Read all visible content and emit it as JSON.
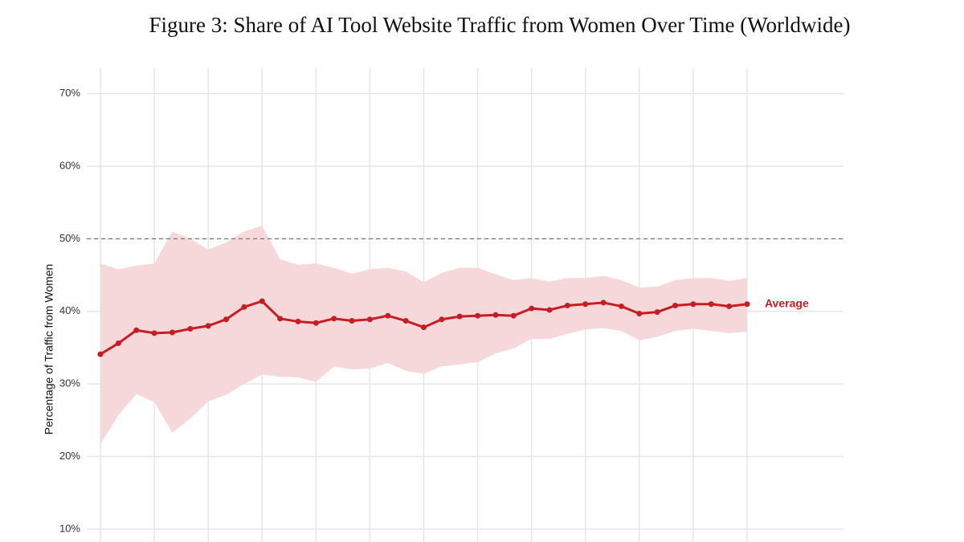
{
  "chart_data": {
    "type": "line",
    "title": "Figure 3: Share of AI Tool Website Traffic from Women Over Time (Worldwide)",
    "ylabel": "Percentage of Traffic from Women",
    "categories": [
      null,
      null,
      null,
      null,
      null,
      null,
      null,
      null,
      null,
      null,
      null,
      null,
      null,
      null,
      null,
      null,
      null,
      null,
      null,
      null,
      null,
      null,
      null,
      null,
      null,
      null,
      null,
      null,
      null,
      null,
      null,
      null,
      null,
      null,
      null,
      null,
      null
    ],
    "series": [
      {
        "name": "Average",
        "color": "#c41e24",
        "values": [
          34.1,
          35.6,
          37.4,
          37.0,
          37.1,
          37.6,
          38.0,
          38.9,
          40.6,
          41.4,
          39.0,
          38.6,
          38.4,
          39.0,
          38.7,
          38.9,
          39.4,
          38.7,
          37.8,
          38.9,
          39.3,
          39.4,
          39.5,
          39.4,
          40.4,
          40.2,
          40.8,
          41.0,
          41.2,
          40.7,
          39.7,
          39.9,
          40.8,
          41.0,
          41.0,
          40.7,
          41.0
        ]
      }
    ],
    "band": {
      "color": "#f6d8da",
      "upper": [
        46.6,
        45.8,
        46.3,
        46.6,
        51.0,
        50.0,
        48.5,
        49.5,
        51.0,
        51.8,
        47.2,
        46.4,
        46.6,
        46.0,
        45.2,
        45.8,
        46.0,
        45.5,
        44.0,
        45.3,
        46.0,
        46.0,
        45.1,
        44.3,
        44.6,
        44.1,
        44.6,
        44.6,
        44.9,
        44.3,
        43.3,
        43.4,
        44.3,
        44.6,
        44.6,
        44.2,
        44.6
      ],
      "lower": [
        21.7,
        25.7,
        28.6,
        27.5,
        23.3,
        25.2,
        27.6,
        28.5,
        30.0,
        31.3,
        31.0,
        30.9,
        30.3,
        32.4,
        32.0,
        32.1,
        32.9,
        31.8,
        31.4,
        32.4,
        32.7,
        33.0,
        34.2,
        34.9,
        36.2,
        36.2,
        36.9,
        37.5,
        37.7,
        37.3,
        36.0,
        36.5,
        37.3,
        37.6,
        37.3,
        37.0,
        37.2
      ]
    },
    "hline": 50,
    "ylim": [
      8,
      73.5
    ],
    "yticks": [
      {
        "value": 10,
        "label": "10%"
      },
      {
        "value": 20,
        "label": "20%"
      },
      {
        "value": 30,
        "label": "30%"
      },
      {
        "value": 40,
        "label": "40%"
      },
      {
        "value": 50,
        "label": "50%"
      },
      {
        "value": 60,
        "label": "60%"
      },
      {
        "value": 70,
        "label": "70%"
      }
    ],
    "grid": true
  }
}
